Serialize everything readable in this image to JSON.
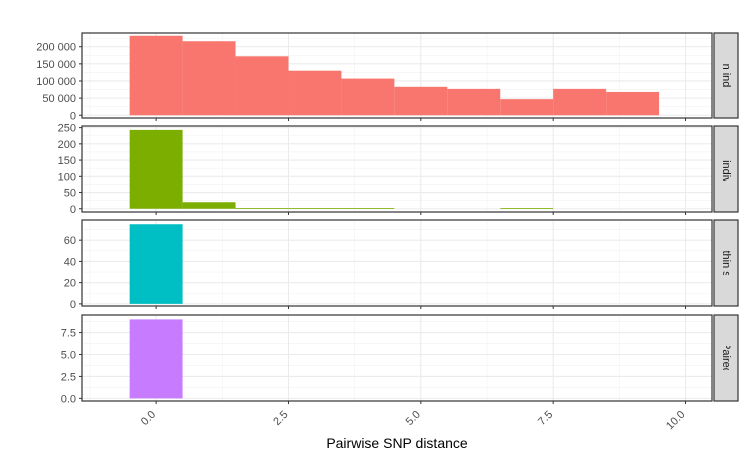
{
  "chart_data": {
    "type": "bar",
    "xlabel": "Pairwise SNP distance",
    "ylabel": "",
    "xlim": [
      -1.4,
      10.5
    ],
    "x_ticks": [
      0.0,
      2.5,
      5.0,
      7.5,
      10.0
    ],
    "x_tick_labels": [
      "0.0",
      "2.5",
      "5.0",
      "7.5",
      "10.0"
    ],
    "bin_width": 1,
    "grid": true,
    "legend": "none",
    "panels": [
      {
        "name": "Between individuals",
        "strip_label": "Between individuals",
        "color": "#F8766D",
        "ylim": [
          -8000,
          240000
        ],
        "y_ticks": [
          0,
          50000,
          100000,
          150000,
          200000
        ],
        "y_tick_labels": [
          "0",
          "50 000",
          "100 000",
          "150 000",
          "200 000"
        ],
        "bins": [
          {
            "x": 0,
            "count": 232000
          },
          {
            "x": 1,
            "count": 216000
          },
          {
            "x": 2,
            "count": 172000
          },
          {
            "x": 3,
            "count": 130000
          },
          {
            "x": 4,
            "count": 107000
          },
          {
            "x": 5,
            "count": 83000
          },
          {
            "x": 6,
            "count": 77000
          },
          {
            "x": 7,
            "count": 47000
          },
          {
            "x": 8,
            "count": 77000
          },
          {
            "x": 9,
            "count": 68000
          }
        ]
      },
      {
        "name": "Within individuals",
        "strip_label": "Within individuals",
        "color": "#7CAE00",
        "ylim": [
          -10,
          255
        ],
        "y_ticks": [
          0,
          50,
          100,
          150,
          200,
          250
        ],
        "y_tick_labels": [
          "0",
          "50",
          "100",
          "150",
          "200",
          "250"
        ],
        "bins": [
          {
            "x": 0,
            "count": 243
          },
          {
            "x": 1,
            "count": 20
          },
          {
            "x": 2,
            "count": 2
          },
          {
            "x": 3,
            "count": 2
          },
          {
            "x": 4,
            "count": 2
          },
          {
            "x": 7,
            "count": 2
          }
        ]
      },
      {
        "name": "Within site",
        "strip_label": "Within site",
        "color": "#00BFC4",
        "ylim": [
          -2,
          79
        ],
        "y_ticks": [
          0,
          20,
          40,
          60
        ],
        "y_tick_labels": [
          "0",
          "20",
          "40",
          "60"
        ],
        "bins": [
          {
            "x": 0,
            "count": 75
          }
        ]
      },
      {
        "name": "Paired",
        "strip_label": "Paired",
        "color": "#C77CFF",
        "ylim": [
          -0.3,
          9.5
        ],
        "y_ticks": [
          0.0,
          2.5,
          5.0,
          7.5
        ],
        "y_tick_labels": [
          "0.0",
          "2.5",
          "5.0",
          "7.5"
        ],
        "bins": [
          {
            "x": 0,
            "count": 9
          }
        ]
      }
    ]
  }
}
